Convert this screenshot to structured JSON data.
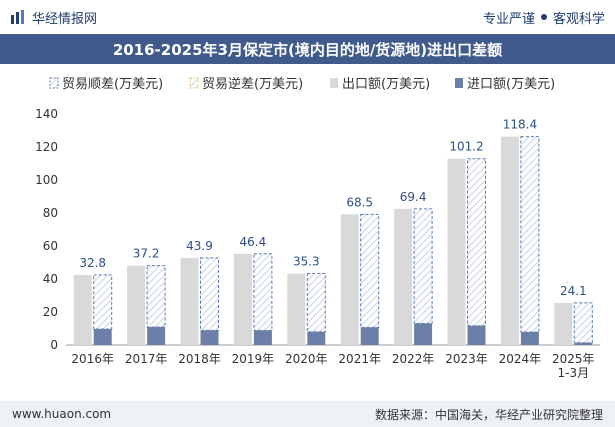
{
  "header": {
    "brand_name": "华经情报网",
    "tagline_left": "专业严谨",
    "tagline_right": "客观科学"
  },
  "title": "2016-2025年3月保定市(境内目的地/货源地)进出口差额",
  "footer": {
    "website": "www.huaon.com",
    "source": "数据来源：中国海关，华经产业研究院整理"
  },
  "colors": {
    "title_bg": "#405a8c",
    "export_bar": "#d9d9d9",
    "import_bar": "#6b7fa8",
    "surplus_border": "#5a7bb5",
    "deficit_border": "#f2c94c",
    "label_text": "#2d4f86"
  },
  "chart_data": {
    "type": "bar",
    "title": "2016-2025年3月保定市(境内目的地/货源地)进出口差额",
    "categories": [
      "2016年",
      "2017年",
      "2018年",
      "2019年",
      "2020年",
      "2021年",
      "2022年",
      "2023年",
      "2024年",
      "2025年\n1-3月"
    ],
    "ylim": [
      0,
      140
    ],
    "yticks": [
      0,
      20,
      40,
      60,
      80,
      100,
      120,
      140
    ],
    "legend": [
      "贸易顺差(万美元)",
      "贸易逆差(万美元)",
      "出口额(万美元)",
      "进口额(万美元)"
    ],
    "legend_position": "top",
    "series": [
      {
        "name": "贸易顺差(万美元)",
        "values": [
          32.8,
          37.2,
          43.9,
          46.4,
          35.3,
          68.5,
          69.4,
          101.2,
          118.4,
          24.1
        ]
      },
      {
        "name": "贸易逆差(万美元)",
        "values": [
          0,
          0,
          0,
          0,
          0,
          0,
          0,
          0,
          0,
          0
        ]
      },
      {
        "name": "出口额(万美元)",
        "values": [
          42.5,
          48.1,
          52.8,
          55.3,
          43.3,
          79.2,
          82.5,
          112.9,
          126.3,
          25.5
        ]
      },
      {
        "name": "进口额(万美元)",
        "values": [
          9.7,
          10.9,
          8.9,
          8.9,
          8.0,
          10.7,
          13.1,
          11.7,
          7.9,
          1.4
        ]
      }
    ],
    "data_labels": [
      "32.8",
      "37.2",
      "43.9",
      "46.4",
      "35.3",
      "68.5",
      "69.4",
      "101.2",
      "118.4",
      "24.1"
    ]
  }
}
